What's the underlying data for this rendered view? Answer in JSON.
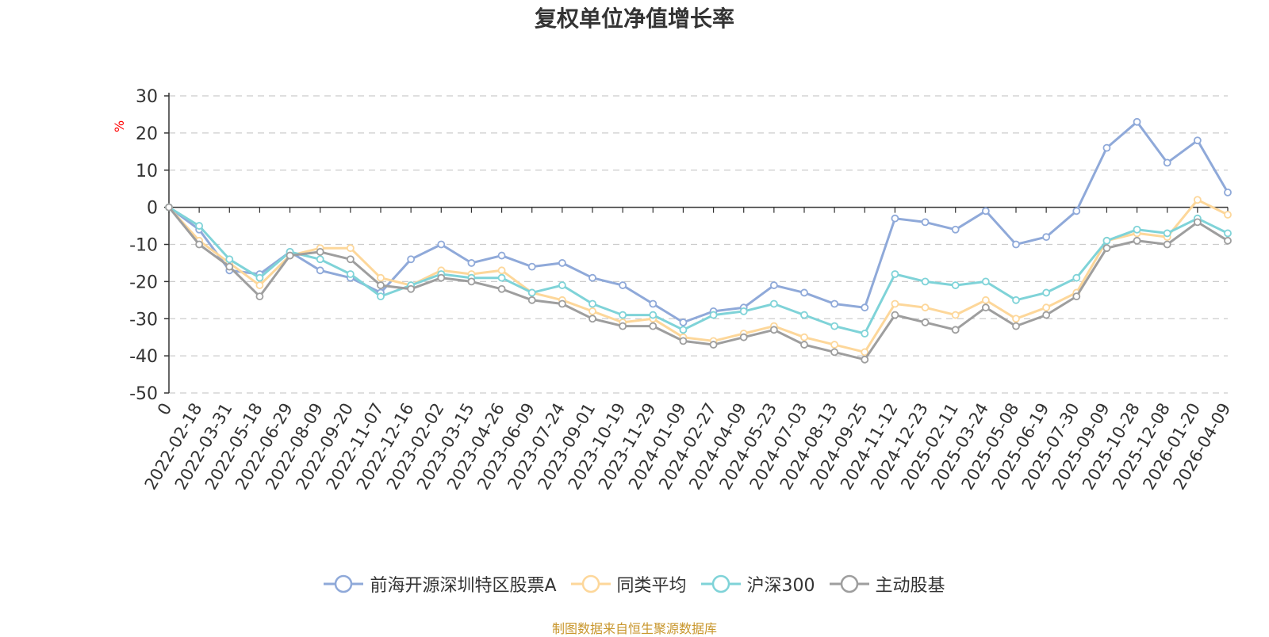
{
  "chart_data": {
    "type": "line",
    "title": "复权单位净值增长率",
    "ylabel": "%",
    "ylim": [
      -50,
      30
    ],
    "yticks": [
      30,
      20,
      10,
      0,
      -10,
      -20,
      -30,
      -40,
      -50
    ],
    "grid": true,
    "categories": [
      "0",
      "2022-02-18",
      "2022-03-31",
      "2022-05-18",
      "2022-06-29",
      "2022-08-09",
      "2022-09-20",
      "2022-11-07",
      "2022-12-16",
      "2023-02-02",
      "2023-03-15",
      "2023-04-26",
      "2023-06-09",
      "2023-07-24",
      "2023-09-01",
      "2023-10-19",
      "2023-11-29",
      "2024-01-09",
      "2024-02-27",
      "2024-04-09",
      "2024-05-23",
      "2024-07-03",
      "2024-08-13",
      "2024-09-25",
      "2024-11-12",
      "2024-12-23",
      "2025-02-11",
      "2025-03-24",
      "2025-05-08",
      "2025-06-19",
      "2025-07-30",
      "2025-09-09",
      "2025-10-28",
      "2025-12-08",
      "2026-01-20",
      "2026-04-09"
    ],
    "series": [
      {
        "name": "前海开源深圳特区股票A",
        "color": "#8fa9d9",
        "values": [
          0,
          -6,
          -17,
          -18,
          -12,
          -17,
          -19,
          -23,
          -14,
          -10,
          -15,
          -13,
          -16,
          -15,
          -19,
          -21,
          -26,
          -31,
          -28,
          -27,
          -21,
          -23,
          -26,
          -27,
          -3,
          -4,
          -6,
          -1,
          -10,
          -8,
          -1,
          16,
          23,
          12,
          18,
          4
        ]
      },
      {
        "name": "同类平均",
        "color": "#fdd79a",
        "values": [
          0,
          -9,
          -15,
          -21,
          -13,
          -11,
          -11,
          -19,
          -21,
          -17,
          -18,
          -17,
          -23,
          -25,
          -28,
          -31,
          -30,
          -35,
          -36,
          -34,
          -32,
          -35,
          -37,
          -39,
          -26,
          -27,
          -29,
          -25,
          -30,
          -27,
          -23,
          -9,
          -7,
          -8,
          2,
          -2
        ]
      },
      {
        "name": "沪深300",
        "color": "#7fd3d8",
        "values": [
          0,
          -5,
          -14,
          -19,
          -12,
          -14,
          -18,
          -24,
          -21,
          -18,
          -19,
          -19,
          -23,
          -21,
          -26,
          -29,
          -29,
          -33,
          -29,
          -28,
          -26,
          -29,
          -32,
          -34,
          -18,
          -20,
          -21,
          -20,
          -25,
          -23,
          -19,
          -9,
          -6,
          -7,
          -3,
          -7
        ]
      },
      {
        "name": "主动股基",
        "color": "#9e9e9e",
        "values": [
          0,
          -10,
          -16,
          -24,
          -13,
          -12,
          -14,
          -21,
          -22,
          -19,
          -20,
          -22,
          -25,
          -26,
          -30,
          -32,
          -32,
          -36,
          -37,
          -35,
          -33,
          -37,
          -39,
          -41,
          -29,
          -31,
          -33,
          -27,
          -32,
          -29,
          -24,
          -11,
          -9,
          -10,
          -4,
          -9
        ]
      }
    ]
  },
  "source_note": "制图数据来自恒生聚源数据库"
}
